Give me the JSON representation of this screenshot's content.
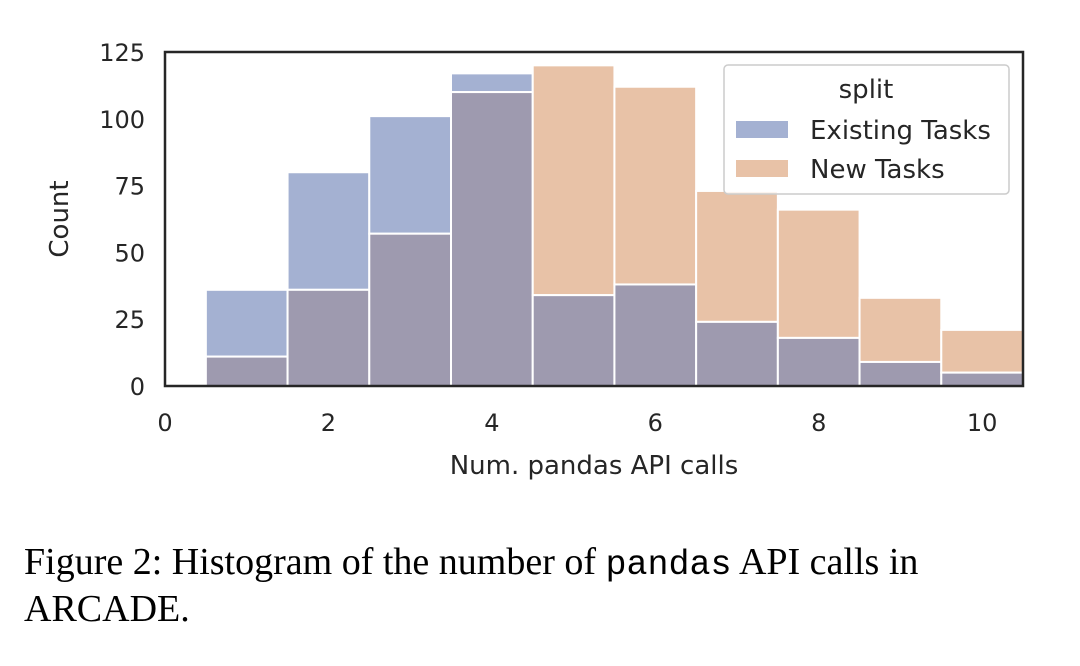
{
  "chart_data": {
    "type": "bar",
    "subtype": "overlapping-histogram",
    "xlabel": "Num. pandas API calls",
    "ylabel": "Count",
    "xlim": [
      0,
      10.5
    ],
    "ylim": [
      0,
      125
    ],
    "xticks": [
      0,
      2,
      4,
      6,
      8,
      10
    ],
    "yticks": [
      0,
      25,
      50,
      75,
      100,
      125
    ],
    "grid": false,
    "legend": {
      "title": "split",
      "placement": "top-right"
    },
    "bins": [
      1,
      2,
      3,
      4,
      5,
      6,
      7,
      8,
      9,
      10
    ],
    "series": [
      {
        "name": "Existing Tasks",
        "color": "#a4b1d2",
        "values": [
          36,
          80,
          101,
          117,
          34,
          38,
          24,
          18,
          9,
          5
        ]
      },
      {
        "name": "New Tasks",
        "color": "#e8c2a7",
        "values": [
          11,
          36,
          57,
          110,
          120,
          112,
          73,
          66,
          33,
          21
        ]
      }
    ],
    "overlap_color": "#9e9aaf"
  },
  "caption": {
    "prefix": "Figure 2: Histogram of the number of ",
    "code": "pandas",
    "suffix": " API calls in ARCADE."
  }
}
